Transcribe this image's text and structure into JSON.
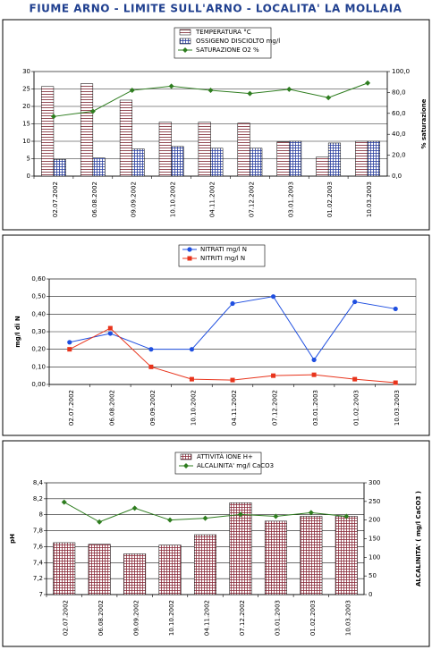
{
  "title": "FIUME ARNO - LIMITE SULL'ARNO - LOCALITA'  LA MOLLAIA",
  "chart_data": [
    {
      "type": "combo",
      "legend": "top",
      "grid": true,
      "categories": [
        "02.07.2002",
        "06.08.2002",
        "09.09.2002",
        "10.10.2002",
        "04.11.2002",
        "07.12.2002",
        "03.01.2003",
        "01.02.2003",
        "10.03.2003"
      ],
      "series": [
        {
          "name": "TEMPERATURA  °C",
          "type": "bar",
          "pattern": "stripes",
          "color": "#7a1f2b",
          "values": [
            25.7,
            26.5,
            21.8,
            15.5,
            15.5,
            15.2,
            9.8,
            5.5,
            10.0
          ]
        },
        {
          "name": "OSSIGENO DISCIOLTO  mg/l",
          "type": "bar",
          "pattern": "grid",
          "color": "#2a3f9f",
          "values": [
            4.8,
            5.2,
            7.8,
            8.5,
            8.0,
            8.0,
            10.0,
            9.5,
            10.0
          ]
        },
        {
          "name": "SATURAZIONE O2  %",
          "type": "line",
          "marker": "diamond",
          "axis": "y2",
          "color": "#2e7d1f",
          "values": [
            57,
            62,
            82,
            86,
            82,
            79,
            83,
            75,
            89
          ]
        }
      ],
      "ylim": [
        0,
        30
      ],
      "yticks": [
        0,
        5,
        10,
        15,
        20,
        25,
        30
      ],
      "y2lim": [
        0,
        100
      ],
      "y2ticks": [
        {
          "value": 0,
          "label": "0,0"
        },
        {
          "value": 20,
          "label": "20,0"
        },
        {
          "value": 40,
          "label": "40,0"
        },
        {
          "value": 60,
          "label": "60,0"
        },
        {
          "value": 80,
          "label": "80,0"
        },
        {
          "value": 100,
          "label": "100,0"
        }
      ],
      "y2label": "% saturazione"
    },
    {
      "type": "line",
      "legend": "top",
      "grid": true,
      "categories": [
        "02.07.2002",
        "06.08.2002",
        "09.09.2002",
        "10.10.2002",
        "04.11.2002",
        "07.12.2002",
        "03.01.2003",
        "01.02.2003",
        "10.03.2003"
      ],
      "series": [
        {
          "name": "NITRATI  mg/l N",
          "type": "line",
          "marker": "circle",
          "color": "#1f4fe0",
          "values": [
            0.24,
            0.29,
            0.2,
            0.2,
            0.46,
            0.5,
            0.14,
            0.47,
            0.43
          ]
        },
        {
          "name": "NITRITI  mg/l N",
          "type": "line",
          "marker": "square",
          "color": "#e8341c",
          "values": [
            0.2,
            0.32,
            0.1,
            0.03,
            0.025,
            0.05,
            0.055,
            0.03,
            0.01
          ]
        }
      ],
      "ylim": [
        0,
        0.6
      ],
      "yticks": [
        {
          "value": 0,
          "label": "0,00"
        },
        {
          "value": 0.1,
          "label": "0,10"
        },
        {
          "value": 0.2,
          "label": "0,20"
        },
        {
          "value": 0.3,
          "label": "0,30"
        },
        {
          "value": 0.4,
          "label": "0,40"
        },
        {
          "value": 0.5,
          "label": "0,50"
        },
        {
          "value": 0.6,
          "label": "0,60"
        }
      ],
      "ylabel": "mg/l di N"
    },
    {
      "type": "combo",
      "legend": "top",
      "grid": true,
      "categories": [
        "02.07.2002",
        "06.08.2002",
        "09.09.2002",
        "10.10.2002",
        "04.11.2002",
        "07.12.2002",
        "03.01.2003",
        "01.02.2003",
        "10.03.2003"
      ],
      "series": [
        {
          "name": "ATTIVITÀ IONE H+",
          "type": "bar",
          "pattern": "grid",
          "color": "#8a2a3a",
          "values": [
            7.65,
            7.63,
            7.51,
            7.62,
            7.75,
            8.15,
            7.92,
            7.98,
            7.98
          ]
        },
        {
          "name": "ALCALINITA' mg/l CaCO3",
          "type": "line",
          "marker": "diamond",
          "axis": "y2",
          "color": "#2e7d1f",
          "values": [
            248,
            195,
            232,
            200,
            205,
            215,
            210,
            220,
            210
          ]
        }
      ],
      "ylim": [
        7,
        8.4
      ],
      "yticks": [
        7,
        {
          "value": 7.2,
          "label": "7,2"
        },
        {
          "value": 7.4,
          "label": "7,4"
        },
        {
          "value": 7.6,
          "label": "7,6"
        },
        {
          "value": 7.8,
          "label": "7,8"
        },
        8,
        {
          "value": 8.2,
          "label": "8,2"
        },
        {
          "value": 8.4,
          "label": "8,4"
        }
      ],
      "y2lim": [
        0,
        300
      ],
      "y2ticks": [
        0,
        50,
        100,
        150,
        200,
        250,
        300
      ],
      "ylabel": "pH",
      "y2label": "ALCALINITA' ( mg/l CaCO3 )"
    }
  ]
}
